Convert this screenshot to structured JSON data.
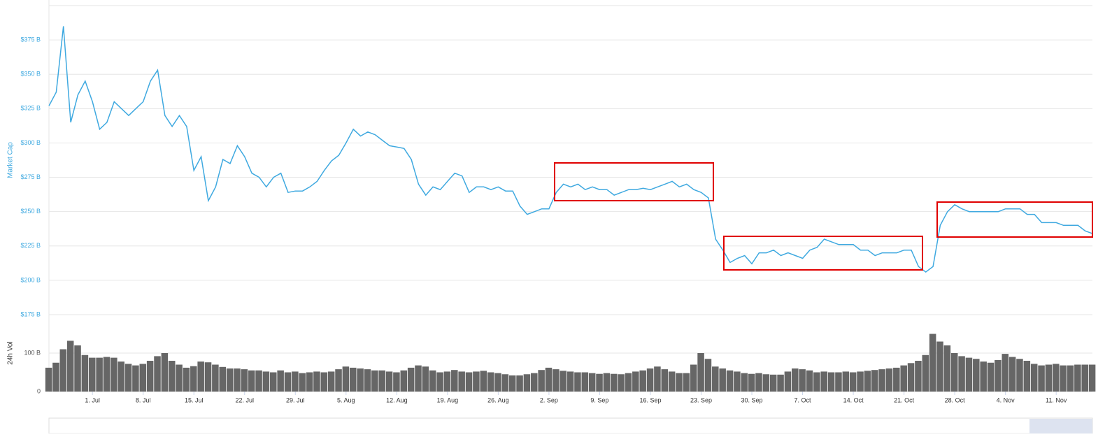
{
  "chart_data": [
    {
      "type": "line",
      "y_label": "Market Cap",
      "color": "#3fa9e0",
      "grid": true,
      "ylim": [
        175,
        400
      ],
      "yticks": [
        {
          "value": 175,
          "label": "$175 B"
        },
        {
          "value": 200,
          "label": "$200 B"
        },
        {
          "value": 225,
          "label": "$225 B"
        },
        {
          "value": 250,
          "label": "$250 B"
        },
        {
          "value": 275,
          "label": "$275 B"
        },
        {
          "value": 300,
          "label": "$300 B"
        },
        {
          "value": 325,
          "label": "$325 B"
        },
        {
          "value": 350,
          "label": "$350 B"
        },
        {
          "value": 375,
          "label": "$375 B"
        }
      ],
      "values": [
        327,
        337,
        385,
        315,
        335,
        345,
        330,
        310,
        315,
        330,
        325,
        320,
        325,
        330,
        345,
        353,
        320,
        312,
        320,
        312,
        280,
        290,
        258,
        268,
        288,
        285,
        298,
        290,
        278,
        275,
        268,
        275,
        278,
        264,
        265,
        265,
        268,
        272,
        280,
        287,
        291,
        300,
        310,
        305,
        308,
        306,
        302,
        298,
        297,
        296,
        288,
        270,
        262,
        268,
        266,
        272,
        278,
        276,
        264,
        268,
        268,
        266,
        268,
        265,
        265,
        254,
        248,
        250,
        252,
        252,
        264,
        270,
        268,
        270,
        266,
        268,
        266,
        266,
        262,
        264,
        266,
        266,
        267,
        266,
        268,
        270,
        272,
        268,
        270,
        266,
        264,
        260,
        230,
        222,
        213,
        216,
        218,
        212,
        220,
        220,
        222,
        218,
        220,
        218,
        216,
        222,
        224,
        230,
        228,
        226,
        226,
        226,
        222,
        222,
        218,
        220,
        220,
        220,
        222,
        222,
        210,
        206,
        210,
        240,
        250,
        255,
        252,
        250,
        250,
        250,
        250,
        250,
        252,
        252,
        252,
        248,
        248,
        242,
        242,
        242,
        240,
        240,
        240,
        236,
        234
      ]
    },
    {
      "type": "bar",
      "y_label": "24h Vol",
      "color": "#666666",
      "grid": true,
      "ylim": [
        0,
        200
      ],
      "yticks": [
        0,
        {
          "value": 100,
          "label": "100 B"
        }
      ],
      "categories": [
        null,
        null,
        null,
        null,
        null,
        null,
        "1. Jul",
        null,
        null,
        null,
        null,
        null,
        null,
        "8. Jul",
        null,
        null,
        null,
        null,
        null,
        null,
        "15. Jul",
        null,
        null,
        null,
        null,
        null,
        null,
        "22. Jul",
        null,
        null,
        null,
        null,
        null,
        null,
        "29. Jul",
        null,
        null,
        null,
        null,
        null,
        null,
        "5. Aug",
        null,
        null,
        null,
        null,
        null,
        null,
        "12. Aug",
        null,
        null,
        null,
        null,
        null,
        null,
        "19. Aug",
        null,
        null,
        null,
        null,
        null,
        null,
        "26. Aug",
        null,
        null,
        null,
        null,
        null,
        null,
        "2. Sep",
        null,
        null,
        null,
        null,
        null,
        null,
        "9. Sep",
        null,
        null,
        null,
        null,
        null,
        null,
        "16. Sep",
        null,
        null,
        null,
        null,
        null,
        null,
        "23. Sep",
        null,
        null,
        null,
        null,
        null,
        null,
        "30. Sep",
        null,
        null,
        null,
        null,
        null,
        null,
        "7. Oct",
        null,
        null,
        null,
        null,
        null,
        null,
        "14. Oct",
        null,
        null,
        null,
        null,
        null,
        null,
        "21. Oct",
        null,
        null,
        null,
        null,
        null,
        null,
        "28. Oct",
        null,
        null,
        null,
        null,
        null,
        null,
        "4. Nov",
        null,
        null,
        null,
        null,
        null,
        null,
        "11. Nov",
        null,
        null,
        null,
        null,
        null
      ],
      "values": [
        62,
        75,
        110,
        132,
        120,
        95,
        88,
        88,
        90,
        88,
        78,
        72,
        68,
        72,
        80,
        92,
        100,
        80,
        70,
        62,
        66,
        78,
        76,
        70,
        64,
        60,
        60,
        58,
        55,
        55,
        52,
        50,
        55,
        50,
        52,
        48,
        50,
        52,
        50,
        52,
        58,
        65,
        62,
        60,
        58,
        55,
        55,
        52,
        50,
        55,
        62,
        68,
        65,
        55,
        50,
        52,
        56,
        52,
        50,
        52,
        54,
        50,
        48,
        45,
        42,
        42,
        45,
        48,
        56,
        62,
        58,
        54,
        52,
        50,
        50,
        48,
        46,
        48,
        46,
        45,
        48,
        52,
        55,
        60,
        65,
        58,
        52,
        48,
        48,
        70,
        100,
        85,
        65,
        60,
        55,
        52,
        48,
        46,
        48,
        45,
        44,
        44,
        52,
        60,
        58,
        55,
        50,
        52,
        50,
        50,
        52,
        50,
        52,
        54,
        56,
        58,
        60,
        62,
        68,
        74,
        80,
        95,
        150,
        130,
        120,
        100,
        92,
        88,
        85,
        78,
        75,
        82,
        98,
        90,
        85,
        80,
        72,
        68,
        70,
        72,
        68,
        68,
        70,
        70,
        70
      ]
    }
  ]
}
